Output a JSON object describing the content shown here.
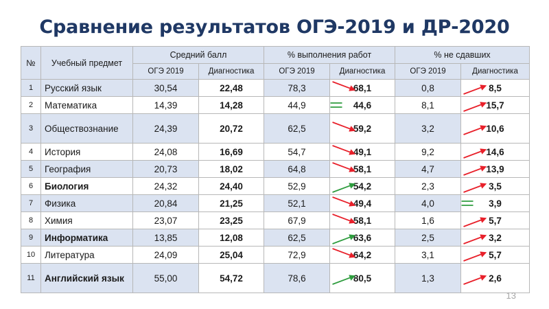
{
  "title": "Сравнение результатов ОГЭ-2019 и ДР-2020",
  "headers": {
    "num": "№",
    "subject": "Учебный предмет",
    "avg": "Средний балл",
    "pct": "% выполнения работ",
    "fail": "% не сдавших",
    "oge": "ОГЭ 2019",
    "diag": "Диагностика"
  },
  "rows": [
    {
      "n": "1",
      "subject": "Русский язык",
      "avg_oge": "30,54",
      "avg_diag": "22,48",
      "pct_oge": "78,3",
      "pct_diag": "68,1",
      "fail_oge": "0,8",
      "fail_diag": "8,5",
      "pct_trend": "down",
      "fail_trend": "up"
    },
    {
      "n": "2",
      "subject": "Математика",
      "avg_oge": "14,39",
      "avg_diag": "14,28",
      "pct_oge": "44,9",
      "pct_diag": "44,6",
      "fail_oge": "8,1",
      "fail_diag": "15,7",
      "pct_trend": "equal",
      "fail_trend": "up"
    },
    {
      "n": "3",
      "subject": "Обществознание",
      "avg_oge": "24,39",
      "avg_diag": "20,72",
      "pct_oge": "62,5",
      "pct_diag": "59,2",
      "fail_oge": "3,2",
      "fail_diag": "10,6",
      "pct_trend": "down",
      "fail_trend": "up"
    },
    {
      "n": "4",
      "subject": "История",
      "avg_oge": "24,08",
      "avg_diag": "16,69",
      "pct_oge": "54,7",
      "pct_diag": "49,1",
      "fail_oge": "9,2",
      "fail_diag": "14,6",
      "pct_trend": "down",
      "fail_trend": "up"
    },
    {
      "n": "5",
      "subject": "География",
      "avg_oge": "20,73",
      "avg_diag": "18,02",
      "pct_oge": "64,8",
      "pct_diag": "58,1",
      "fail_oge": "4,7",
      "fail_diag": "13,9",
      "pct_trend": "down",
      "fail_trend": "up"
    },
    {
      "n": "6",
      "subject": "Биология",
      "avg_oge": "24,32",
      "avg_diag": "24,40",
      "pct_oge": "52,9",
      "pct_diag": "54,2",
      "fail_oge": "2,3",
      "fail_diag": "3,5",
      "pct_trend": "up",
      "fail_trend": "up"
    },
    {
      "n": "7",
      "subject": "Физика",
      "avg_oge": "20,84",
      "avg_diag": "21,25",
      "pct_oge": "52,1",
      "pct_diag": "49,4",
      "fail_oge": "4,0",
      "fail_diag": "3,9",
      "pct_trend": "down",
      "fail_trend": "equal"
    },
    {
      "n": "8",
      "subject": "Химия",
      "avg_oge": "23,07",
      "avg_diag": "23,25",
      "pct_oge": "67,9",
      "pct_diag": "58,1",
      "fail_oge": "1,6",
      "fail_diag": "5,7",
      "pct_trend": "down",
      "fail_trend": "up"
    },
    {
      "n": "9",
      "subject": "Информатика",
      "avg_oge": "13,85",
      "avg_diag": "12,08",
      "pct_oge": "62,5",
      "pct_diag": "63,6",
      "fail_oge": "2,5",
      "fail_diag": "3,2",
      "pct_trend": "up",
      "fail_trend": "up"
    },
    {
      "n": "10",
      "subject": "Литература",
      "avg_oge": "24,09",
      "avg_diag": "25,04",
      "pct_oge": "72,9",
      "pct_diag": "64,2",
      "fail_oge": "3,1",
      "fail_diag": "5,7",
      "pct_trend": "down",
      "fail_trend": "up"
    },
    {
      "n": "11",
      "subject": "Английский язык",
      "avg_oge": "55,00",
      "avg_diag": "54,72",
      "pct_oge": "78,6",
      "pct_diag": "80,5",
      "fail_oge": "1,3",
      "fail_diag": "2,6",
      "pct_trend": "up",
      "fail_trend": "up"
    }
  ],
  "page_number": "13",
  "colors": {
    "title": "#1f3864",
    "header_fill": "#dbe3f1",
    "arrow_red": "#e8202a",
    "arrow_green": "#2e9c3e"
  }
}
